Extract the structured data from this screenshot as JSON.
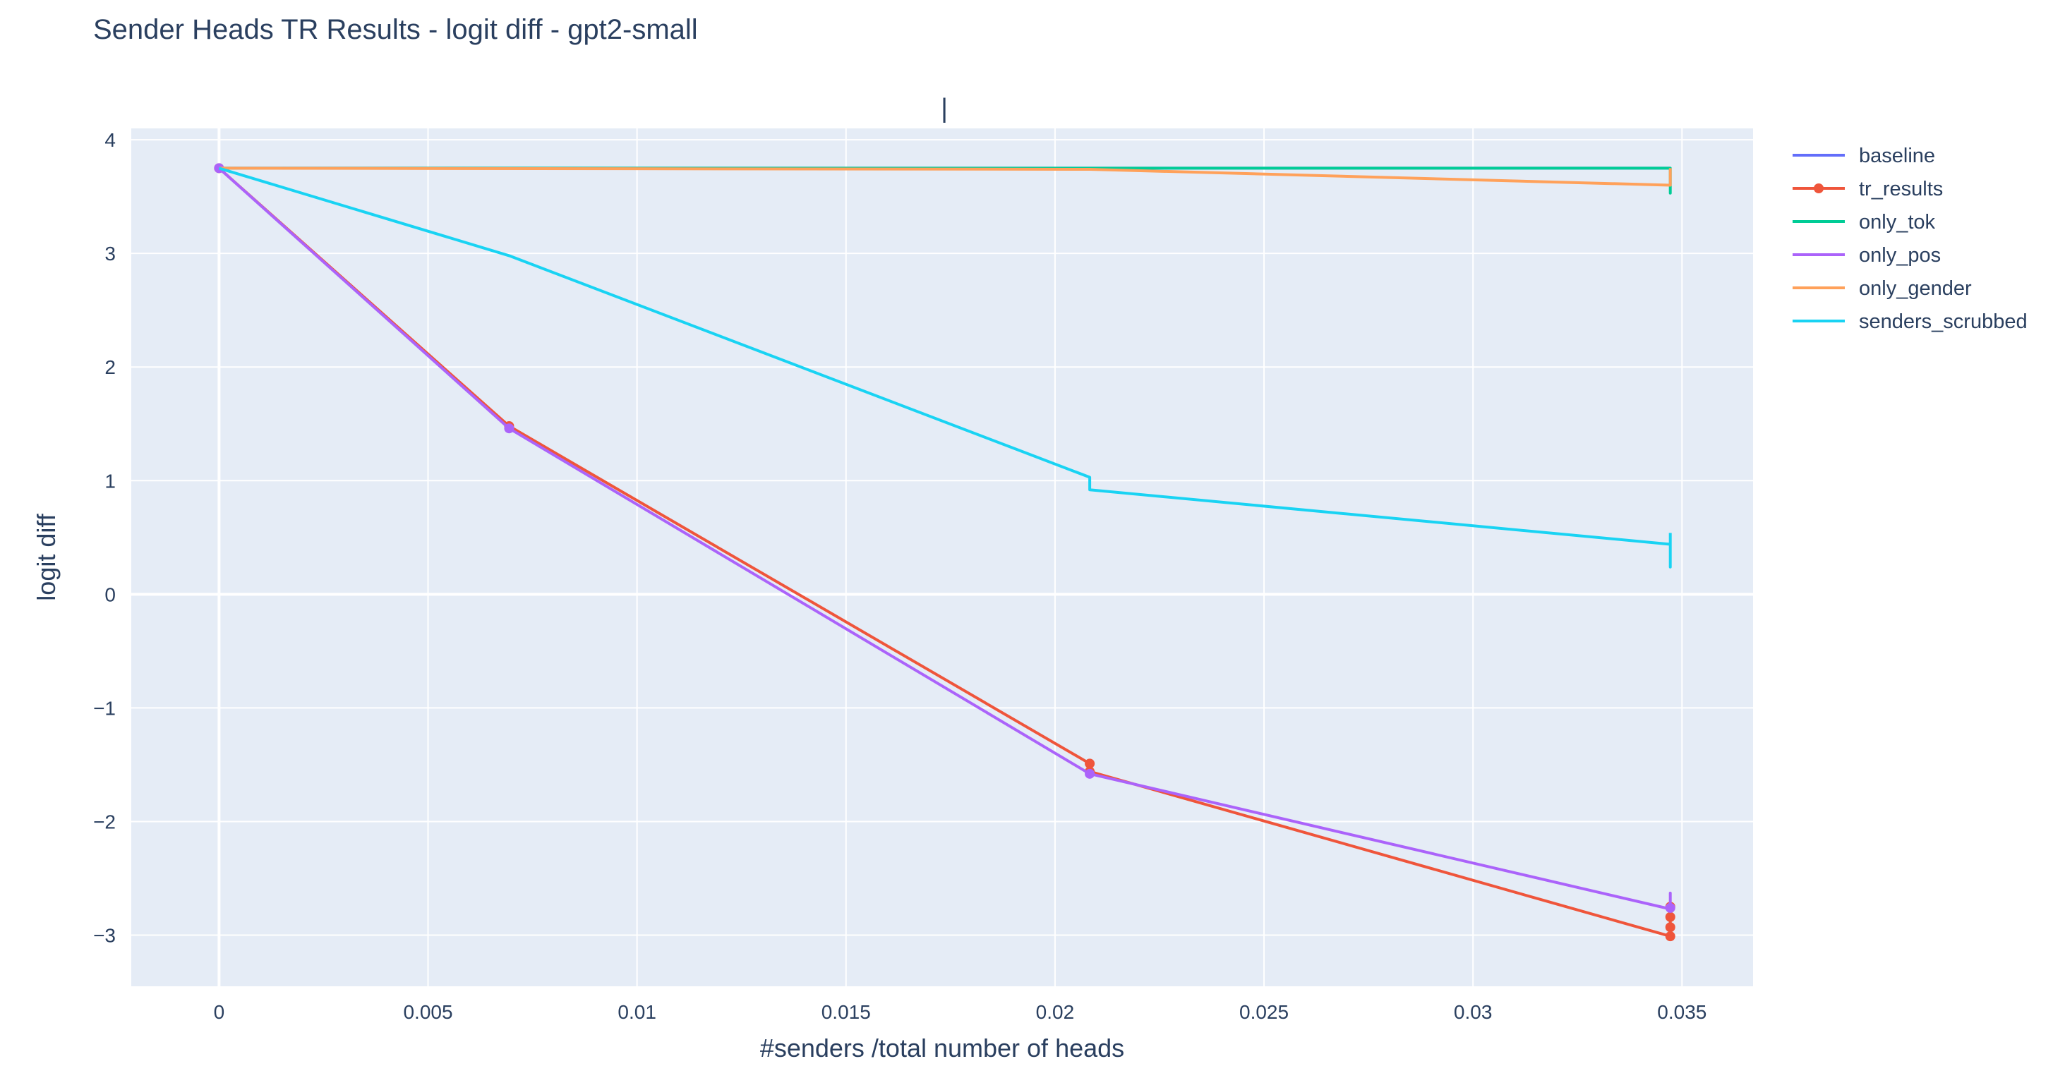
{
  "chart_data": {
    "type": "line",
    "title": "Sender Heads TR Results - logit diff - gpt2-small",
    "subtitle": "|",
    "xlabel": "#senders /total number of heads",
    "ylabel": "logit diff",
    "xlim": [
      -0.0021,
      0.0367
    ],
    "ylim": [
      -3.45,
      4.1
    ],
    "xticks": [
      0,
      0.005,
      0.01,
      0.015,
      0.02,
      0.025,
      0.03,
      0.035
    ],
    "xtick_labels": [
      "0",
      "0.005",
      "0.01",
      "0.015",
      "0.02",
      "0.025",
      "0.03",
      "0.035"
    ],
    "yticks": [
      -3,
      -2,
      -1,
      0,
      1,
      2,
      3,
      4
    ],
    "ytick_labels": [
      "−3",
      "−2",
      "−1",
      "0",
      "1",
      "2",
      "3",
      "4"
    ],
    "grid": true,
    "plot_background": "#e5ecf6",
    "legend_position": "right",
    "series": [
      {
        "name": "baseline",
        "color": "#636efa",
        "markers": false,
        "x": [
          0,
          0.03472
        ],
        "y": [
          3.75,
          3.75
        ]
      },
      {
        "name": "tr_results",
        "color": "#ef553b",
        "markers": true,
        "x": [
          0,
          0.00694,
          0.02083,
          0.02083,
          0.03472,
          0.03472,
          0.03472,
          0.03472
        ],
        "y": [
          3.75,
          1.48,
          -1.49,
          -1.56,
          -3.01,
          -2.93,
          -2.84,
          -2.75
        ]
      },
      {
        "name": "only_tok",
        "color": "#00cc96",
        "markers": false,
        "x": [
          0,
          0.02083,
          0.03472,
          0.03472,
          0.03472
        ],
        "y": [
          3.75,
          3.75,
          3.75,
          3.53,
          3.7
        ]
      },
      {
        "name": "only_pos",
        "color": "#ab63fa",
        "markers": true,
        "marker_x": [
          0,
          0.00694,
          0.02083,
          0.03472
        ],
        "marker_y": [
          3.75,
          1.46,
          -1.58,
          -2.76
        ],
        "x": [
          0,
          0.00694,
          0.02083,
          0.03472,
          0.03472,
          0.03472
        ],
        "y": [
          3.75,
          1.46,
          -1.58,
          -2.77,
          -2.63,
          -2.78
        ]
      },
      {
        "name": "only_gender",
        "color": "#ffa15a",
        "markers": false,
        "x": [
          0,
          0.02083,
          0.03472,
          0.03472
        ],
        "y": [
          3.75,
          3.74,
          3.6,
          3.75
        ]
      },
      {
        "name": "senders_scrubbed",
        "color": "#19d3f3",
        "markers": false,
        "x": [
          0,
          0.00694,
          0.02083,
          0.02083,
          0.03472,
          0.03472,
          0.03472
        ],
        "y": [
          3.75,
          2.98,
          1.03,
          0.92,
          0.44,
          0.24,
          0.54
        ]
      }
    ]
  }
}
